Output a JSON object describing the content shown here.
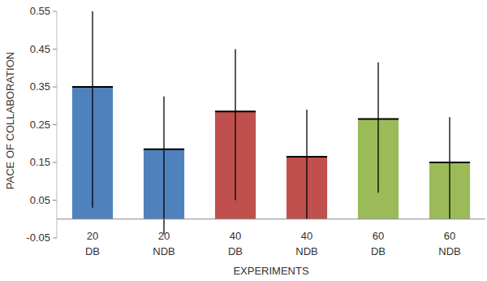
{
  "chart_data": {
    "type": "bar",
    "x_label": "EXPERIMENTS",
    "y_label": "PACE OF COLLABORATION",
    "categories": [
      "20\nDB",
      "20\nNDB",
      "40\nDB",
      "40\nNDB",
      "60\nDB",
      "60\nNDB"
    ],
    "values": [
      0.35,
      0.185,
      0.285,
      0.165,
      0.265,
      0.15
    ],
    "error_minus": [
      0.32,
      0.225,
      0.235,
      0.165,
      0.195,
      0.15
    ],
    "error_plus": [
      0.205,
      0.14,
      0.165,
      0.125,
      0.15,
      0.12
    ],
    "colors": [
      "#4f81bd",
      "#4f81bd",
      "#c0504d",
      "#c0504d",
      "#9bbb59",
      "#9bbb59"
    ],
    "ylim": [
      -0.05,
      0.55
    ],
    "yticks": [
      -0.05,
      0.05,
      0.15,
      0.25,
      0.35,
      0.45,
      0.55
    ],
    "grid": false
  }
}
